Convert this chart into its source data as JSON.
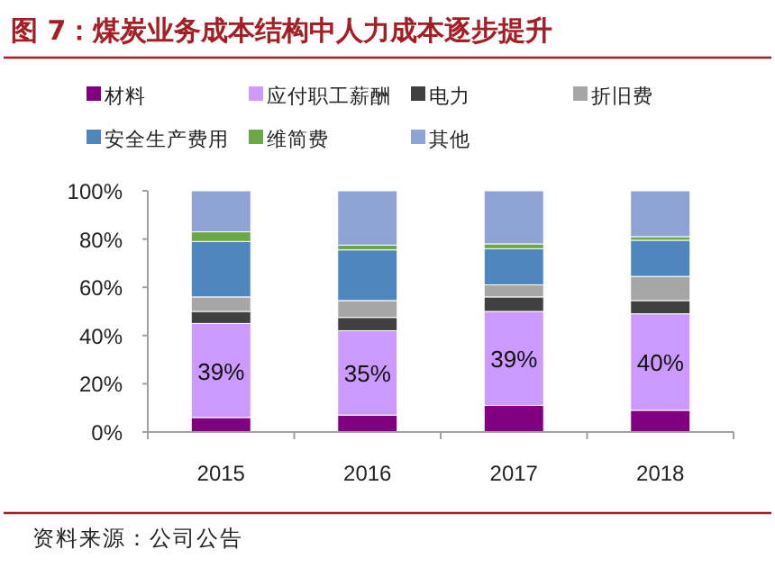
{
  "chart_data": {
    "type": "bar",
    "stacked": true,
    "title": "图 7：煤炭业务成本结构中人力成本逐步提升",
    "categories": [
      "2015",
      "2016",
      "2017",
      "2018"
    ],
    "series": [
      {
        "name": "材料",
        "color": "#800080",
        "values": [
          6,
          7,
          11,
          9
        ]
      },
      {
        "name": "应付职工薪酬",
        "color": "#cc99ff",
        "values": [
          39,
          35,
          39,
          40
        ],
        "value_labels": [
          "39%",
          "35%",
          "39%",
          "40%"
        ]
      },
      {
        "name": "电力",
        "color": "#404040",
        "values": [
          5,
          5.5,
          6,
          5.5
        ]
      },
      {
        "name": "折旧费",
        "color": "#a6a6a6",
        "values": [
          6,
          7,
          5,
          10
        ]
      },
      {
        "name": "安全生产费用",
        "color": "#4f86be",
        "values": [
          23,
          21,
          15,
          15
        ]
      },
      {
        "name": "维简费",
        "color": "#6aa843",
        "values": [
          4,
          2,
          2,
          1.5
        ]
      },
      {
        "name": "其他",
        "color": "#8fa2d4",
        "values": [
          17,
          22.5,
          22,
          19
        ]
      }
    ],
    "ylim": [
      0,
      100
    ],
    "yticks": [
      {
        "value": 0,
        "label": "0%"
      },
      {
        "value": 20,
        "label": "20%"
      },
      {
        "value": 40,
        "label": "40%"
      },
      {
        "value": 60,
        "label": "60%"
      },
      {
        "value": 80,
        "label": "80%"
      },
      {
        "value": 100,
        "label": "100%"
      }
    ],
    "legend": "top",
    "annotations": [
      "资料来源：公司公告"
    ]
  }
}
